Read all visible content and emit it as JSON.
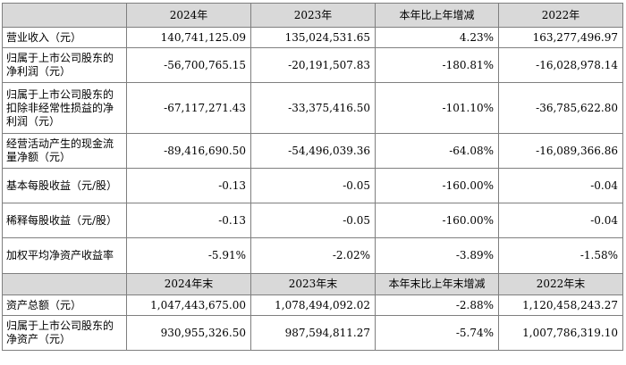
{
  "header1": [
    "",
    "2024年",
    "2023年",
    "本年比上年增减",
    "2022年"
  ],
  "rows1": [
    {
      "label": "营业收入（元）",
      "v2024": "140,741,125.09",
      "v2023": "135,024,531.65",
      "change": "4.23%",
      "v2022": "163,277,496.97"
    },
    {
      "label": "归属于上市公司股东的净利润（元）",
      "v2024": "-56,700,765.15",
      "v2023": "-20,191,507.83",
      "change": "-180.81%",
      "v2022": "-16,028,978.14"
    },
    {
      "label": "归属于上市公司股东的扣除非经常性损益的净利润（元）",
      "v2024": "-67,117,271.43",
      "v2023": "-33,375,416.50",
      "change": "-101.10%",
      "v2022": "-36,785,622.80"
    },
    {
      "label": "经营活动产生的现金流量净额（元）",
      "v2024": "-89,416,690.50",
      "v2023": "-54,496,039.36",
      "change": "-64.08%",
      "v2022": "-16,089,366.86"
    },
    {
      "label": "基本每股收益（元/股）",
      "v2024": "-0.13",
      "v2023": "-0.05",
      "change": "-160.00%",
      "v2022": "-0.04"
    },
    {
      "label": "稀释每股收益（元/股）",
      "v2024": "-0.13",
      "v2023": "-0.05",
      "change": "-160.00%",
      "v2022": "-0.04"
    },
    {
      "label": "加权平均净资产收益率",
      "v2024": "-5.91%",
      "v2023": "-2.02%",
      "change": "-3.89%",
      "v2022": "-1.58%"
    }
  ],
  "header2": [
    "",
    "2024年末",
    "2023年末",
    "本年末比上年末增减",
    "2022年末"
  ],
  "rows2": [
    {
      "label": "资产总额（元）",
      "v2024": "1,047,443,675.00",
      "v2023": "1,078,494,092.02",
      "change": "-2.88%",
      "v2022": "1,120,458,243.27"
    },
    {
      "label": "归属于上市公司股东的净资产（元）",
      "v2024": "930,955,326.50",
      "v2023": "987,594,811.27",
      "change": "-5.74%",
      "v2022": "1,007,786,319.10"
    }
  ]
}
